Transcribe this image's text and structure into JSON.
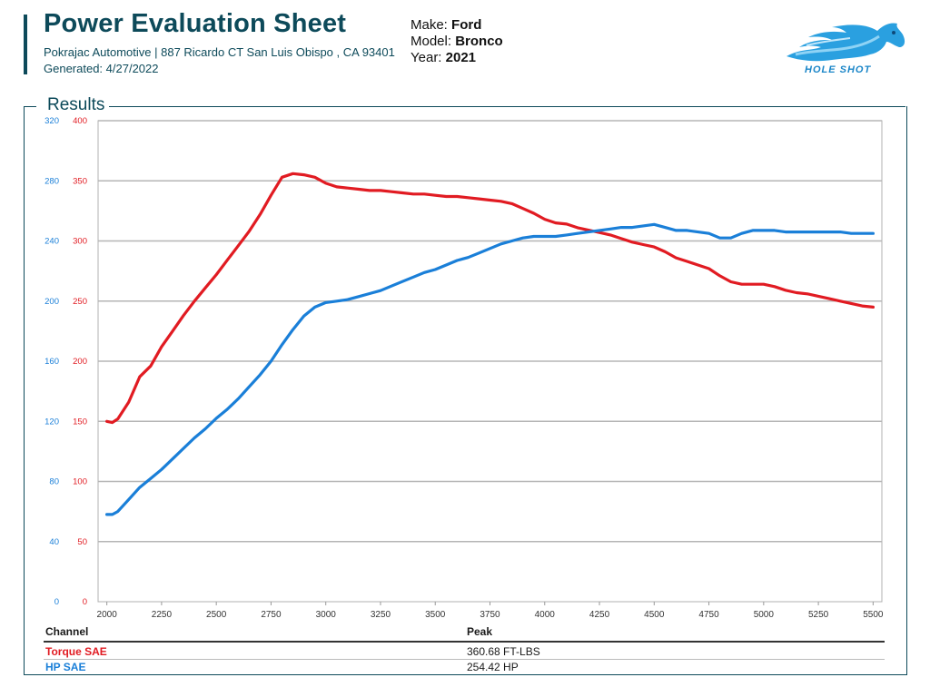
{
  "header": {
    "title": "Power Evaluation Sheet",
    "shop_line": "Pokrajac Automotive | 887 Ricardo CT San Luis Obispo , CA 93401",
    "generated": "Generated: 4/27/2022"
  },
  "vehicle": {
    "make_label": "Make:",
    "make": "Ford",
    "model_label": "Model:",
    "model": "Bronco",
    "year_label": "Year:",
    "year": "2021"
  },
  "logo": {
    "text": "HOLE SHOT"
  },
  "section": {
    "results": "Results"
  },
  "table": {
    "col_channel": "Channel",
    "col_peak": "Peak",
    "rows": [
      {
        "channel": "Torque SAE",
        "peak": "360.68 FT-LBS"
      },
      {
        "channel": "HP SAE",
        "peak": "254.42 HP"
      }
    ]
  },
  "colors": {
    "torque": "#e11b22",
    "hp": "#1a7fd8",
    "accent": "#0d4a5a"
  },
  "chart_data": {
    "type": "line",
    "x_ticks": [
      2000,
      2250,
      2500,
      2750,
      3000,
      3250,
      3500,
      3750,
      4000,
      4250,
      4500,
      4750,
      5000,
      5250,
      5500
    ],
    "xlim": [
      1960,
      5540
    ],
    "y_left_ticks": [
      0,
      40,
      80,
      120,
      160,
      200,
      240,
      280,
      320
    ],
    "y_left_range": [
      0,
      320
    ],
    "y_right_ticks": [
      0,
      50,
      100,
      150,
      200,
      250,
      300,
      350,
      400
    ],
    "y_right_range": [
      0,
      400
    ],
    "grid": true,
    "series": [
      {
        "name": "Torque SAE",
        "axis": "right",
        "color": "#e11b22",
        "x": [
          2000,
          2025,
          2050,
          2100,
          2150,
          2200,
          2250,
          2300,
          2350,
          2400,
          2450,
          2500,
          2550,
          2600,
          2650,
          2700,
          2750,
          2800,
          2850,
          2900,
          2950,
          3000,
          3050,
          3100,
          3150,
          3200,
          3250,
          3300,
          3350,
          3400,
          3450,
          3500,
          3550,
          3600,
          3650,
          3700,
          3750,
          3800,
          3850,
          3900,
          3950,
          4000,
          4050,
          4100,
          4150,
          4200,
          4250,
          4300,
          4350,
          4400,
          4450,
          4500,
          4550,
          4600,
          4650,
          4700,
          4750,
          4800,
          4850,
          4900,
          4950,
          5000,
          5050,
          5100,
          5150,
          5200,
          5250,
          5300,
          5350,
          5400,
          5450,
          5500
        ],
        "values": [
          150,
          149,
          152,
          166,
          187,
          196,
          212,
          225,
          238,
          250,
          261,
          272,
          284,
          296,
          308,
          322,
          338,
          353,
          356,
          355,
          353,
          348,
          345,
          344,
          343,
          342,
          342,
          341,
          340,
          339,
          339,
          338,
          337,
          337,
          336,
          335,
          334,
          333,
          331,
          327,
          323,
          318,
          315,
          314,
          311,
          309,
          307,
          305,
          302,
          299,
          297,
          295,
          291,
          286,
          283,
          280,
          277,
          271,
          266,
          264,
          264,
          264,
          262,
          259,
          257,
          256,
          254,
          252,
          250,
          248,
          246,
          245
        ]
      },
      {
        "name": "HP SAE",
        "axis": "left",
        "color": "#1a7fd8",
        "x": [
          2000,
          2025,
          2050,
          2100,
          2150,
          2200,
          2250,
          2300,
          2350,
          2400,
          2450,
          2500,
          2550,
          2600,
          2650,
          2700,
          2750,
          2800,
          2850,
          2900,
          2950,
          3000,
          3050,
          3100,
          3150,
          3200,
          3250,
          3300,
          3350,
          3400,
          3450,
          3500,
          3550,
          3600,
          3650,
          3700,
          3750,
          3800,
          3850,
          3900,
          3950,
          4000,
          4050,
          4100,
          4150,
          4200,
          4250,
          4300,
          4350,
          4400,
          4450,
          4500,
          4550,
          4600,
          4650,
          4700,
          4750,
          4800,
          4850,
          4900,
          4950,
          5000,
          5050,
          5100,
          5150,
          5200,
          5250,
          5300,
          5350,
          5400,
          5450,
          5500
        ],
        "values": [
          58,
          58,
          60,
          68,
          76,
          82,
          88,
          95,
          102,
          109,
          115,
          122,
          128,
          135,
          143,
          151,
          160,
          171,
          181,
          190,
          196,
          199,
          200,
          201,
          203,
          205,
          207,
          210,
          213,
          216,
          219,
          221,
          224,
          227,
          229,
          232,
          235,
          238,
          240,
          242,
          243,
          243,
          243,
          244,
          245,
          246,
          247,
          248,
          249,
          249,
          250,
          251,
          249,
          247,
          247,
          246,
          245,
          242,
          242,
          245,
          247,
          247,
          247,
          246,
          246,
          246,
          246,
          246,
          246,
          245,
          245,
          245
        ]
      }
    ]
  }
}
